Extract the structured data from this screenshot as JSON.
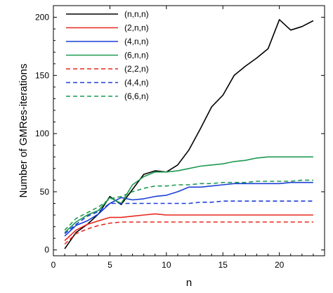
{
  "chart_data": {
    "type": "line",
    "title": "",
    "xlabel": "n",
    "ylabel": "Number of GMRes-iterations",
    "xlim": [
      0,
      24
    ],
    "ylim": [
      -5,
      210
    ],
    "xticks": [
      0,
      5,
      10,
      15,
      20
    ],
    "yticks": [
      0,
      50,
      100,
      150,
      200
    ],
    "grid": false,
    "legend_position": "top-left",
    "series": [
      {
        "name": "(n,n,n)",
        "color": "#000000",
        "dash": "solid",
        "x": [
          1,
          2,
          3,
          4,
          5,
          6,
          7,
          8,
          9,
          10,
          11,
          12,
          13,
          14,
          15,
          16,
          17,
          18,
          19,
          20,
          21,
          22,
          23
        ],
        "y": [
          1,
          15,
          22,
          31,
          46,
          39,
          52,
          65,
          68,
          67,
          73,
          86,
          104,
          123,
          133,
          150,
          158,
          165,
          173,
          198,
          189,
          192,
          197
        ]
      },
      {
        "name": "(2,n,n)",
        "color": "#e8281e",
        "dash": "solid",
        "x": [
          1,
          2,
          3,
          4,
          5,
          6,
          7,
          8,
          9,
          10,
          11,
          12,
          13,
          14,
          15,
          16,
          17,
          18,
          19,
          20,
          21,
          22,
          23
        ],
        "y": [
          8,
          17,
          22,
          25,
          28,
          28,
          29,
          30,
          31,
          30,
          30,
          30,
          30,
          30,
          30,
          30,
          30,
          30,
          30,
          30,
          30,
          30,
          30
        ]
      },
      {
        "name": "(4,n,n)",
        "color": "#1a3fd6",
        "dash": "solid",
        "x": [
          1,
          2,
          3,
          4,
          5,
          6,
          7,
          8,
          9,
          10,
          11,
          12,
          13,
          14,
          15,
          16,
          17,
          18,
          19,
          20,
          21,
          22,
          23
        ],
        "y": [
          12,
          21,
          25,
          31,
          40,
          45,
          43,
          44,
          46,
          47,
          50,
          54,
          54,
          55,
          56,
          57,
          57,
          57,
          57,
          57,
          58,
          58,
          58
        ]
      },
      {
        "name": "(6,n,n)",
        "color": "#1e9950",
        "dash": "solid",
        "x": [
          1,
          2,
          3,
          4,
          5,
          6,
          7,
          8,
          9,
          10,
          11,
          12,
          13,
          14,
          15,
          16,
          17,
          18,
          19,
          20,
          21,
          22,
          23
        ],
        "y": [
          15,
          24,
          30,
          34,
          45,
          40,
          56,
          63,
          67,
          67,
          68,
          70,
          72,
          73,
          74,
          76,
          77,
          79,
          80,
          80,
          80,
          80,
          80
        ]
      },
      {
        "name": "(2,2,n)",
        "color": "#e8281e",
        "dash": "dashed",
        "x": [
          1,
          2,
          3,
          4,
          5,
          6,
          7,
          8,
          9,
          10,
          11,
          12,
          13,
          14,
          15,
          16,
          17,
          18,
          19,
          20,
          21,
          22,
          23
        ],
        "y": [
          5,
          14,
          18,
          21,
          23,
          24,
          24,
          24,
          24,
          24,
          24,
          24,
          24,
          24,
          24,
          24,
          24,
          24,
          24,
          24,
          24,
          24,
          24
        ]
      },
      {
        "name": "(4,4,n)",
        "color": "#1a3fd6",
        "dash": "dashed",
        "x": [
          1,
          2,
          3,
          4,
          5,
          6,
          7,
          8,
          9,
          10,
          11,
          12,
          13,
          14,
          15,
          16,
          17,
          18,
          19,
          20,
          21,
          22,
          23
        ],
        "y": [
          14,
          22,
          29,
          33,
          40,
          40,
          40,
          40,
          40,
          40,
          40,
          40,
          41,
          41,
          42,
          42,
          42,
          42,
          42,
          42,
          42,
          42,
          42
        ]
      },
      {
        "name": "(6,6,n)",
        "color": "#1e9950",
        "dash": "dashed",
        "x": [
          1,
          2,
          3,
          4,
          5,
          6,
          7,
          8,
          9,
          10,
          11,
          12,
          13,
          14,
          15,
          16,
          17,
          18,
          19,
          20,
          21,
          22,
          23
        ],
        "y": [
          17,
          27,
          32,
          37,
          44,
          46,
          50,
          53,
          55,
          55,
          56,
          56,
          57,
          57,
          58,
          58,
          58,
          59,
          59,
          59,
          59,
          60,
          60
        ]
      }
    ]
  }
}
